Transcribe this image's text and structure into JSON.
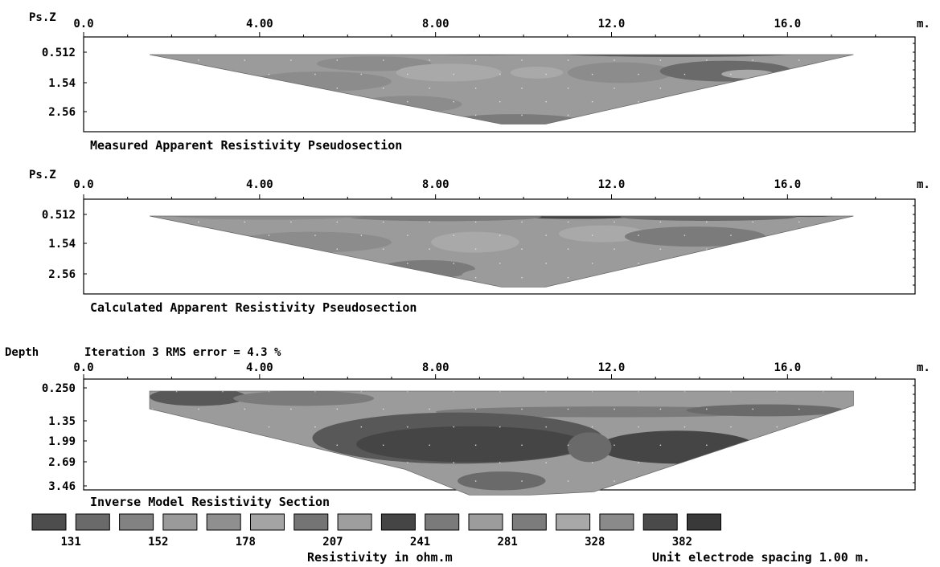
{
  "chart_data": [
    {
      "type": "heatmap",
      "title": "Measured Apparent Resistivity Pseudosection",
      "y_axis_header": "Ps.Z",
      "x_unit": "m.",
      "x_tick_labels": [
        "0.0",
        "4.00",
        "8.00",
        "12.0",
        "16.0"
      ],
      "x_ticks": [
        0,
        4,
        8,
        12,
        16
      ],
      "xlim": [
        0,
        18.9
      ],
      "depth_labels": [
        "0.512",
        "1.54",
        "2.56"
      ],
      "depth_values": [
        0.512,
        1.54,
        2.56
      ],
      "section_extent": {
        "x_start": 1.5,
        "x_end": 17.5,
        "apex_x": [
          9.5,
          10.5
        ],
        "max_depth": 3.0
      },
      "colors": [
        "#454545",
        "#585858",
        "#6a6a6a",
        "#7b7b7b",
        "#8c8c8c",
        "#9b9b9b",
        "#a9a9a9"
      ],
      "background_level": 5,
      "features": [
        {
          "x": 10.8,
          "y": 0.47,
          "rx": 1.6,
          "ry": 0.1,
          "level": 0
        },
        {
          "x": 13.5,
          "y": 0.55,
          "rx": 2.8,
          "ry": 0.12,
          "level": 1
        },
        {
          "x": 9.0,
          "y": 0.5,
          "rx": 1.8,
          "ry": 0.12,
          "level": 2
        },
        {
          "x": 3.5,
          "y": 0.46,
          "rx": 2.0,
          "ry": 0.1,
          "level": 4
        },
        {
          "x": 6.6,
          "y": 0.9,
          "rx": 1.3,
          "ry": 0.25,
          "level": 4
        },
        {
          "x": 5.4,
          "y": 1.5,
          "rx": 1.6,
          "ry": 0.35,
          "level": 4
        },
        {
          "x": 8.3,
          "y": 1.2,
          "rx": 1.2,
          "ry": 0.3,
          "level": 6
        },
        {
          "x": 10.3,
          "y": 1.2,
          "rx": 0.6,
          "ry": 0.2,
          "level": 6
        },
        {
          "x": 12.2,
          "y": 1.2,
          "rx": 1.2,
          "ry": 0.35,
          "level": 4
        },
        {
          "x": 14.6,
          "y": 1.15,
          "rx": 1.5,
          "ry": 0.35,
          "level": 2
        },
        {
          "x": 15.1,
          "y": 1.25,
          "rx": 0.6,
          "ry": 0.15,
          "level": 6
        },
        {
          "x": 9.8,
          "y": 2.85,
          "rx": 1.4,
          "ry": 0.2,
          "level": 3
        },
        {
          "x": 7.4,
          "y": 2.3,
          "rx": 1.2,
          "ry": 0.3,
          "level": 4
        }
      ]
    },
    {
      "type": "heatmap",
      "title": "Calculated Apparent Resistivity Pseudosection",
      "y_axis_header": "Ps.Z",
      "x_unit": "m.",
      "x_tick_labels": [
        "0.0",
        "4.00",
        "8.00",
        "12.0",
        "16.0"
      ],
      "x_ticks": [
        0,
        4,
        8,
        12,
        16
      ],
      "xlim": [
        0,
        18.9
      ],
      "depth_labels": [
        "0.512",
        "1.54",
        "2.56"
      ],
      "depth_values": [
        0.512,
        1.54,
        2.56
      ],
      "section_extent": {
        "x_start": 1.5,
        "x_end": 17.5,
        "apex_x": [
          9.5,
          10.5
        ],
        "max_depth": 3.0
      },
      "colors": [
        "#454545",
        "#585858",
        "#6a6a6a",
        "#7b7b7b",
        "#8c8c8c",
        "#9b9b9b",
        "#a9a9a9"
      ],
      "background_level": 5,
      "features": [
        {
          "x": 11.2,
          "y": 0.55,
          "rx": 1.6,
          "ry": 0.12,
          "level": 0
        },
        {
          "x": 16.5,
          "y": 0.5,
          "rx": 0.9,
          "ry": 0.1,
          "level": 0
        },
        {
          "x": 14.2,
          "y": 0.6,
          "rx": 2.0,
          "ry": 0.14,
          "level": 2
        },
        {
          "x": 8.2,
          "y": 0.6,
          "rx": 2.2,
          "ry": 0.15,
          "level": 3
        },
        {
          "x": 4.2,
          "y": 0.55,
          "rx": 2.2,
          "ry": 0.15,
          "level": 4
        },
        {
          "x": 5.2,
          "y": 1.5,
          "rx": 1.8,
          "ry": 0.35,
          "level": 4
        },
        {
          "x": 8.9,
          "y": 1.5,
          "rx": 1.0,
          "ry": 0.35,
          "level": 6
        },
        {
          "x": 11.8,
          "y": 1.2,
          "rx": 1.0,
          "ry": 0.3,
          "level": 6
        },
        {
          "x": 13.9,
          "y": 1.3,
          "rx": 1.6,
          "ry": 0.35,
          "level": 3
        },
        {
          "x": 7.8,
          "y": 2.4,
          "rx": 1.1,
          "ry": 0.3,
          "level": 3
        },
        {
          "x": 10.0,
          "y": 2.6,
          "rx": 1.4,
          "ry": 0.3,
          "level": 5
        }
      ]
    },
    {
      "type": "heatmap",
      "title": "Inverse Model Resistivity Section",
      "y_axis_header": "Depth",
      "subtitle": "Iteration 3 RMS error = 4.3 %",
      "x_unit": "m.",
      "x_tick_labels": [
        "0.0",
        "4.00",
        "8.00",
        "12.0",
        "16.0"
      ],
      "x_ticks": [
        0,
        4,
        8,
        12,
        16
      ],
      "xlim": [
        0,
        18.9
      ],
      "depth_labels": [
        "0.250",
        "1.35",
        "1.99",
        "2.69",
        "3.46"
      ],
      "depth_values": [
        0.25,
        1.35,
        1.99,
        2.69,
        3.46
      ],
      "section_extent": {
        "x_start": 1.5,
        "x_end": 17.5,
        "apex_x": [
          9.5,
          10.5
        ],
        "max_depth": 3.7
      },
      "colors": [
        "#454545",
        "#585858",
        "#6a6a6a",
        "#7b7b7b",
        "#8c8c8c",
        "#9b9b9b",
        "#a9a9a9"
      ],
      "background_level": 5,
      "features": [
        {
          "x": 10.0,
          "y": 0.6,
          "rx": 8.2,
          "ry": 0.18,
          "level": 5
        },
        {
          "x": 2.6,
          "y": 0.55,
          "rx": 1.1,
          "ry": 0.3,
          "level": 1
        },
        {
          "x": 5.0,
          "y": 0.6,
          "rx": 1.6,
          "ry": 0.25,
          "level": 3
        },
        {
          "x": 12.0,
          "y": 1.05,
          "rx": 4.0,
          "ry": 0.18,
          "level": 3
        },
        {
          "x": 15.5,
          "y": 1.0,
          "rx": 1.8,
          "ry": 0.2,
          "level": 2
        },
        {
          "x": 8.5,
          "y": 1.9,
          "rx": 3.3,
          "ry": 0.85,
          "level": 1
        },
        {
          "x": 8.8,
          "y": 2.1,
          "rx": 2.6,
          "ry": 0.6,
          "level": 0
        },
        {
          "x": 13.5,
          "y": 2.2,
          "rx": 1.8,
          "ry": 0.55,
          "level": 0
        },
        {
          "x": 11.5,
          "y": 2.2,
          "rx": 0.5,
          "ry": 0.5,
          "level": 2
        },
        {
          "x": 9.5,
          "y": 3.3,
          "rx": 1.0,
          "ry": 0.3,
          "level": 2
        }
      ]
    }
  ],
  "legend": {
    "swatch_colors": [
      "#4d4d4d",
      "#6a6a6a",
      "#828282",
      "#9a9a9a",
      "#8f8f8f",
      "#a4a4a4",
      "#747474",
      "#9e9e9e",
      "#454545",
      "#7a7a7a",
      "#9c9c9c",
      "#7c7c7c",
      "#a8a8a8",
      "#8a8a8a",
      "#4a4a4a",
      "#393939"
    ],
    "values": [
      "131",
      "152",
      "178",
      "207",
      "241",
      "281",
      "328",
      "382"
    ],
    "value_swatch_boundary": [
      1,
      3,
      5,
      7,
      9,
      11,
      13,
      15
    ]
  },
  "footer": {
    "resistivity_label": "Resistivity in ohm.m",
    "spacing_label": "Unit electrode spacing 1.00 m."
  }
}
